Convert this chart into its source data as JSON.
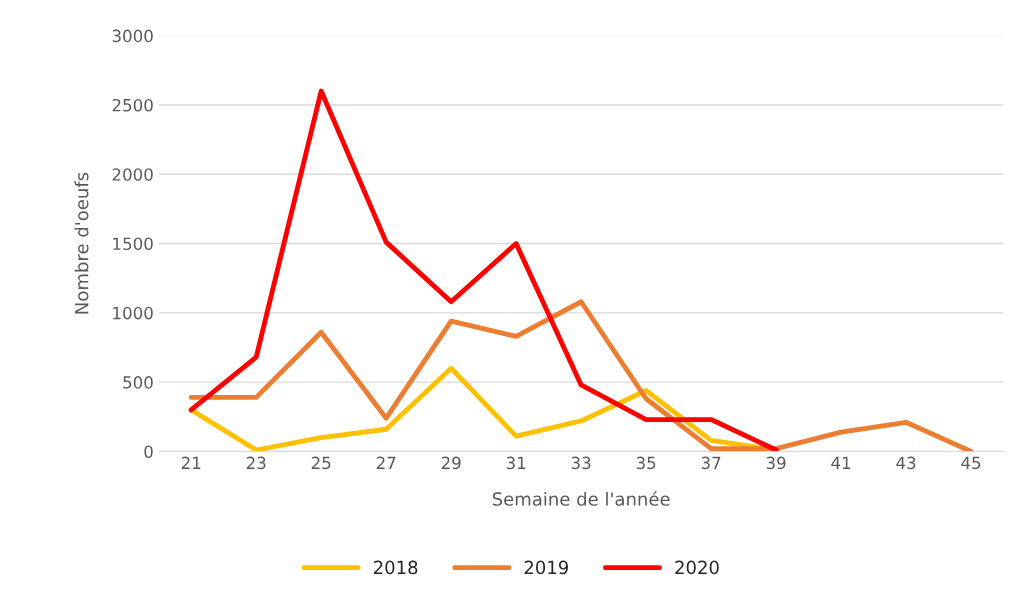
{
  "chart_data": {
    "type": "line",
    "xlabel": "Semaine de l'année",
    "ylabel": "Nombre d'oeufs",
    "categories": [
      "21",
      "23",
      "25",
      "27",
      "29",
      "31",
      "33",
      "35",
      "37",
      "39",
      "41",
      "43",
      "45"
    ],
    "series": [
      {
        "name": "2018",
        "color": "#ffc000",
        "values": [
          300,
          10,
          100,
          160,
          600,
          110,
          220,
          440,
          80,
          10,
          null,
          null,
          null
        ]
      },
      {
        "name": "2019",
        "color": "#ed7d31",
        "values": [
          390,
          390,
          860,
          240,
          940,
          830,
          1080,
          380,
          20,
          20,
          140,
          210,
          0
        ]
      },
      {
        "name": "2020",
        "color": "#ff0000",
        "values": [
          300,
          680,
          2600,
          1510,
          1080,
          1500,
          480,
          230,
          230,
          10,
          null,
          null,
          null
        ]
      }
    ],
    "ylim": [
      0,
      3000
    ],
    "yticks": [
      0,
      500,
      1000,
      1500,
      2000,
      2500,
      3000
    ],
    "grid": "y",
    "legend": "bottom",
    "line_style": "solid",
    "marker": "none"
  }
}
